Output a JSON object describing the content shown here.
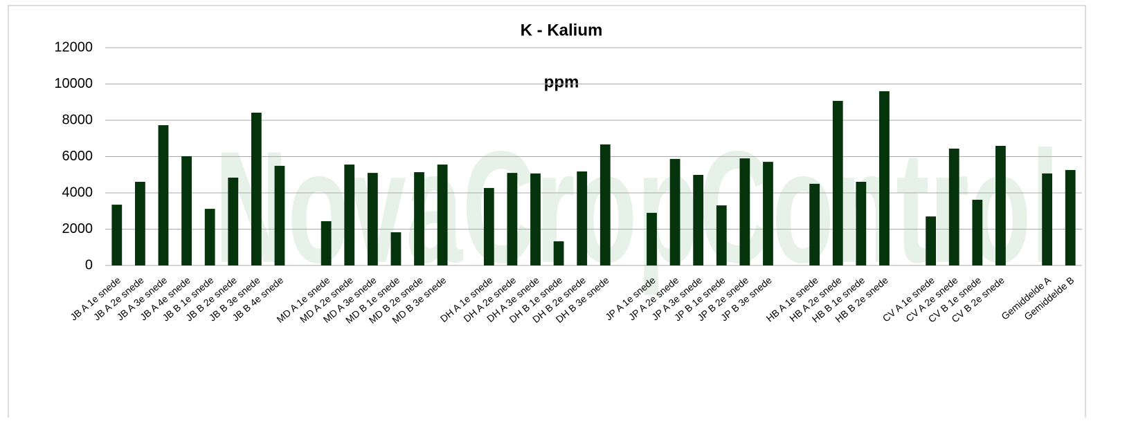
{
  "chart_data": {
    "type": "bar",
    "title": "K - Kalium",
    "subtitle": "ppm",
    "watermark": "NovaCropControl",
    "categories": [
      "JB A 1e snede",
      "JB A 2e snede",
      "JB A 3e snede",
      "JB A 4e snede",
      "JB B 1e snede",
      "JB B 2e snede",
      "JB B 3e snede",
      "JB B 4e snede",
      null,
      "MD A 1e snede",
      "MD A 2e snede",
      "MD A 3e snede",
      "MD B 1e snede",
      "MD B 2e snede",
      "MD B 3e snede",
      null,
      "DH A 1e snede",
      "DH A 2e snede",
      "DH A 3e snede",
      "DH B 1e snede",
      "DH B 2e snede",
      "DH B 3e snede",
      null,
      "JP A 1e snede",
      "JP A 2e snede",
      "JP A 3e snede",
      "JP B 1e snede",
      "JP B 2e snede",
      "JP B 3e snede",
      null,
      "HB A 1e snede",
      "HB A 2e snede",
      "HB B 1e snede",
      "HB B 2e snede",
      null,
      "CV A 1e snede",
      "CV A 2e snede",
      "CV B 1e snede",
      "CV B 2e snede",
      null,
      "Gemiddelde A",
      "Gemiddelde B"
    ],
    "values": [
      3350,
      4610,
      7730,
      6020,
      3120,
      4840,
      8420,
      5490,
      null,
      2440,
      5560,
      5100,
      1830,
      5140,
      5560,
      null,
      4270,
      5100,
      5070,
      1330,
      5180,
      6670,
      null,
      2900,
      5870,
      4990,
      3310,
      5900,
      5710,
      null,
      4500,
      9070,
      4610,
      9600,
      null,
      2700,
      6440,
      3620,
      6590,
      null,
      5070,
      5260
    ],
    "color": "#05330c",
    "ylim": [
      0,
      12000
    ],
    "yticks": [
      0,
      2000,
      4000,
      6000,
      8000,
      10000,
      12000
    ],
    "grid": true
  }
}
